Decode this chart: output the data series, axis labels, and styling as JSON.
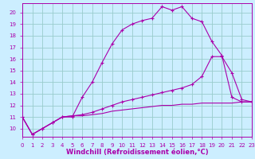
{
  "xlabel": "Windchill (Refroidissement éolien,°C)",
  "bg_color": "#cceeff",
  "line_color": "#aa00aa",
  "grid_color": "#99cccc",
  "xlim": [
    0,
    23
  ],
  "ylim": [
    9.3,
    20.8
  ],
  "yticks": [
    10,
    11,
    12,
    13,
    14,
    15,
    16,
    17,
    18,
    19,
    20
  ],
  "xticks": [
    0,
    1,
    2,
    3,
    4,
    5,
    6,
    7,
    8,
    9,
    10,
    11,
    12,
    13,
    14,
    15,
    16,
    17,
    18,
    19,
    20,
    21,
    22,
    23
  ],
  "line1_x": [
    0,
    1,
    2,
    3,
    4,
    5,
    6,
    7,
    8,
    9,
    10,
    11,
    12,
    13,
    14,
    15,
    16,
    17,
    18,
    19,
    20,
    21,
    22,
    23
  ],
  "line1_y": [
    11.0,
    9.5,
    10.0,
    10.5,
    11.0,
    11.0,
    12.7,
    14.0,
    15.7,
    17.3,
    18.5,
    19.0,
    19.3,
    19.5,
    20.5,
    20.2,
    20.5,
    19.5,
    19.2,
    17.5,
    16.3,
    12.7,
    12.3,
    12.3
  ],
  "line2_x": [
    0,
    1,
    2,
    3,
    4,
    5,
    6,
    7,
    8,
    9,
    10,
    11,
    12,
    13,
    14,
    15,
    16,
    17,
    18,
    19,
    20,
    21,
    22,
    23
  ],
  "line2_y": [
    11.0,
    9.5,
    10.0,
    10.5,
    11.0,
    11.1,
    11.2,
    11.4,
    11.7,
    12.0,
    12.3,
    12.5,
    12.7,
    12.9,
    13.1,
    13.3,
    13.5,
    13.8,
    14.5,
    16.2,
    16.2,
    14.8,
    12.5,
    12.3
  ],
  "line3_x": [
    0,
    1,
    2,
    3,
    4,
    5,
    6,
    7,
    8,
    9,
    10,
    11,
    12,
    13,
    14,
    15,
    16,
    17,
    18,
    19,
    20,
    21,
    22,
    23
  ],
  "line3_y": [
    11.0,
    9.5,
    10.0,
    10.5,
    11.0,
    11.1,
    11.1,
    11.2,
    11.3,
    11.5,
    11.6,
    11.7,
    11.8,
    11.9,
    12.0,
    12.0,
    12.1,
    12.1,
    12.2,
    12.2,
    12.2,
    12.2,
    12.3,
    12.3
  ],
  "tick_fontsize": 5.0,
  "label_fontsize": 6.0
}
